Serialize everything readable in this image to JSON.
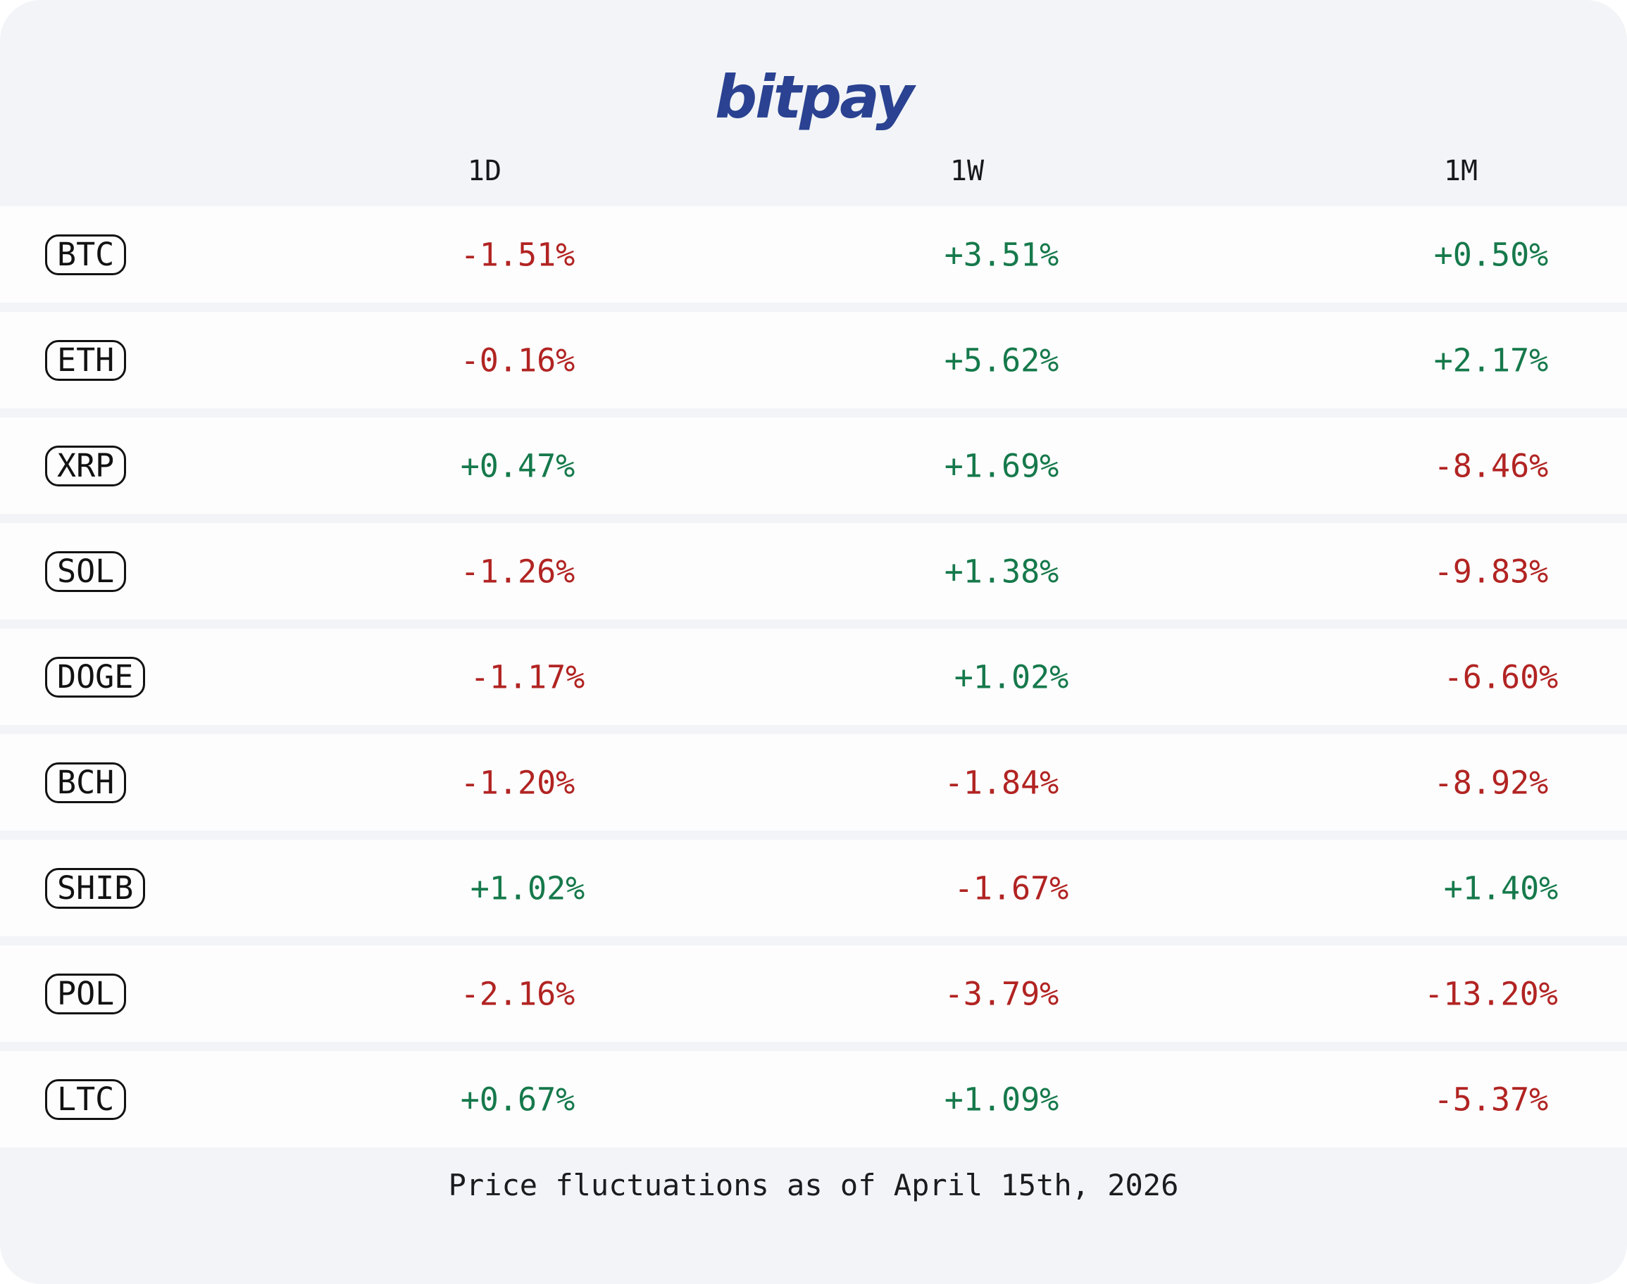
{
  "brand": {
    "name": "bitpay"
  },
  "table": {
    "columns": [
      "1D",
      "1W",
      "1M"
    ],
    "rows": [
      {
        "ticker": "BTC",
        "changes": [
          "-1.51%",
          "+3.51%",
          "+0.50%"
        ],
        "directions": [
          "down",
          "up",
          "up"
        ]
      },
      {
        "ticker": "ETH",
        "changes": [
          "-0.16%",
          "+5.62%",
          "+2.17%"
        ],
        "directions": [
          "down",
          "up",
          "up"
        ]
      },
      {
        "ticker": "XRP",
        "changes": [
          "+0.47%",
          "+1.69%",
          "-8.46%"
        ],
        "directions": [
          "up",
          "up",
          "down"
        ]
      },
      {
        "ticker": "SOL",
        "changes": [
          "-1.26%",
          "+1.38%",
          "-9.83%"
        ],
        "directions": [
          "down",
          "up",
          "down"
        ]
      },
      {
        "ticker": "DOGE",
        "changes": [
          "-1.17%",
          "+1.02%",
          "-6.60%"
        ],
        "directions": [
          "down",
          "up",
          "down"
        ]
      },
      {
        "ticker": "BCH",
        "changes": [
          "-1.20%",
          "-1.84%",
          "-8.92%"
        ],
        "directions": [
          "down",
          "down",
          "down"
        ]
      },
      {
        "ticker": "SHIB",
        "changes": [
          "+1.02%",
          "-1.67%",
          "+1.40%"
        ],
        "directions": [
          "up",
          "down",
          "up"
        ]
      },
      {
        "ticker": "POL",
        "changes": [
          "-2.16%",
          "-3.79%",
          "-13.20%"
        ],
        "directions": [
          "down",
          "down",
          "down"
        ]
      },
      {
        "ticker": "LTC",
        "changes": [
          "+0.67%",
          "+1.09%",
          "-5.37%"
        ],
        "directions": [
          "up",
          "up",
          "down"
        ]
      }
    ]
  },
  "footer": {
    "caption": "Price fluctuations as of April 15th, 2026"
  },
  "colors": {
    "positive": "#16794b",
    "negative": "#b12422",
    "brand_blue": "#2a4291",
    "card_background": "#f2f4f7",
    "row_background": "#fdfdfe"
  },
  "chart_data": {
    "type": "table",
    "title": "bitpay",
    "subtitle": "Price fluctuations as of April 15th, 2026",
    "categories": [
      "BTC",
      "ETH",
      "XRP",
      "SOL",
      "DOGE",
      "BCH",
      "SHIB",
      "POL",
      "LTC"
    ],
    "series": [
      {
        "name": "1D",
        "values": [
          -1.51,
          -0.16,
          0.47,
          -1.26,
          -1.17,
          -1.2,
          1.02,
          -2.16,
          0.67
        ]
      },
      {
        "name": "1W",
        "values": [
          3.51,
          5.62,
          1.69,
          1.38,
          1.02,
          -1.84,
          -1.67,
          -3.79,
          1.09
        ]
      },
      {
        "name": "1M",
        "values": [
          0.5,
          2.17,
          -8.46,
          -9.83,
          -6.6,
          -8.92,
          1.4,
          -13.2,
          -5.37
        ]
      }
    ],
    "unit": "%",
    "value_color_rule": "green if positive, red if negative"
  }
}
